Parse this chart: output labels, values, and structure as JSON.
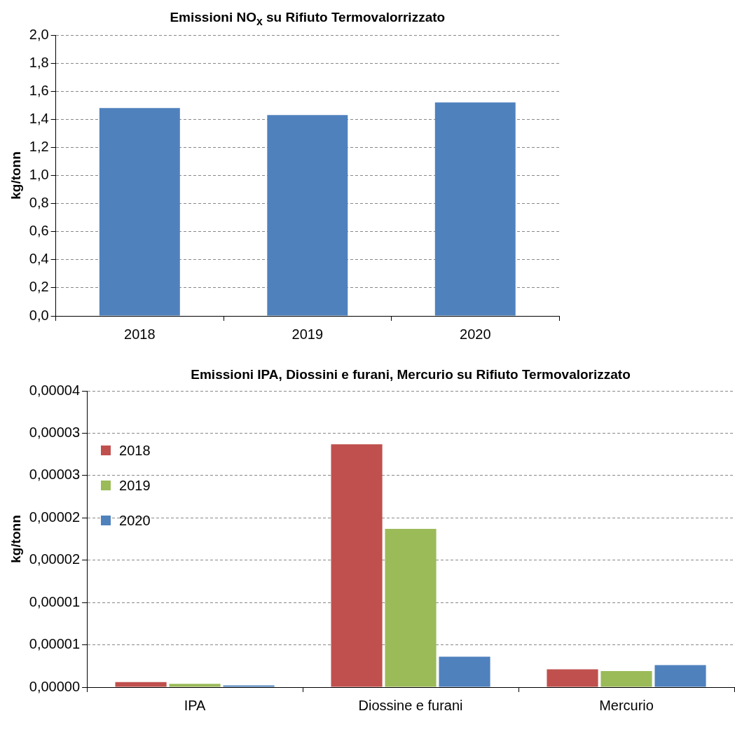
{
  "chart_data": [
    {
      "type": "bar",
      "title": "Emissioni  NO$_{x}$ su Rifiuto Termovalorrizzato",
      "ylabel": "kg/tonn",
      "categories": [
        "2018",
        "2019",
        "2020"
      ],
      "series": [
        {
          "color": "#4f81bd",
          "values": [
            1.48,
            1.43,
            1.52
          ]
        }
      ],
      "ylim": [
        0,
        2
      ],
      "yticks": [
        {
          "value": 0,
          "label": "0,0"
        },
        {
          "value": 0.2,
          "label": "0,2"
        },
        {
          "value": 0.4,
          "label": "0,4"
        },
        {
          "value": 0.6,
          "label": "0,6"
        },
        {
          "value": 0.8,
          "label": "0,8"
        },
        {
          "value": 1,
          "label": "1,0"
        },
        {
          "value": 1.2,
          "label": "1,2"
        },
        {
          "value": 1.4,
          "label": "1,4"
        },
        {
          "value": 1.6,
          "label": "1,6"
        },
        {
          "value": 1.8,
          "label": "1,8"
        },
        {
          "value": 2,
          "label": "2,0"
        }
      ],
      "grid": "y",
      "legend": false
    },
    {
      "type": "bar",
      "title": "Emissioni IPA, Diossini e furani, Mercurio su Rifiuto Termovalorizzato",
      "ylabel": "kg/tonn",
      "categories": [
        "IPA",
        "Diossine e furani",
        "Mercurio"
      ],
      "series": [
        {
          "name": "2018",
          "color": "#c0504d",
          "values": [
            6e-07,
            2.87e-05,
            2.1e-06
          ]
        },
        {
          "name": "2019",
          "color": "#9bbb59",
          "values": [
            4e-07,
            1.87e-05,
            1.9e-06
          ]
        },
        {
          "name": "2020",
          "color": "#4f81bd",
          "values": [
            2e-07,
            3.6e-06,
            2.6e-06
          ]
        }
      ],
      "ylim": [
        0,
        3.5e-05
      ],
      "yticks": [
        {
          "value": 0,
          "label": "0,00000"
        },
        {
          "value": 5e-06,
          "label": "0,00001"
        },
        {
          "value": 1e-05,
          "label": "0,00001"
        },
        {
          "value": 1.5e-05,
          "label": "0,00002"
        },
        {
          "value": 2e-05,
          "label": "0,00002"
        },
        {
          "value": 2.5e-05,
          "label": "0,00003"
        },
        {
          "value": 3e-05,
          "label": "0,00003"
        },
        {
          "value": 3.5e-05,
          "label": "0,00004"
        }
      ],
      "grid": "y",
      "legend": "top left"
    }
  ]
}
